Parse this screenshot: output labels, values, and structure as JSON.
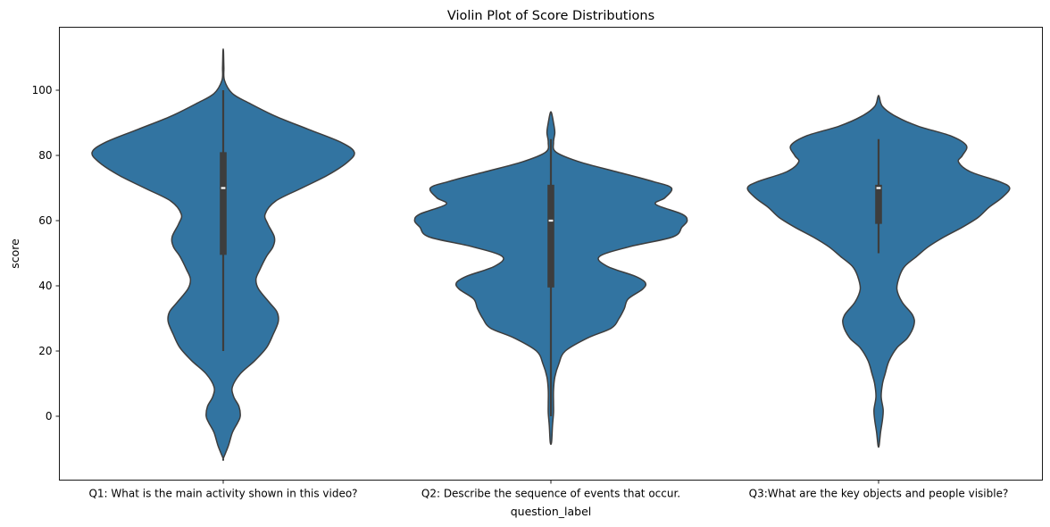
{
  "chart_data": {
    "type": "violin",
    "title": "Violin Plot of Score Distributions",
    "xlabel": "question_label",
    "ylabel": "score",
    "ylim": [
      -13,
      118
    ],
    "yticks": [
      0,
      20,
      40,
      60,
      80,
      100
    ],
    "grid": false,
    "legend": "none",
    "color": "#3274a1",
    "edge_color": "#3d3d3d",
    "inner_color": "#3d3d3d",
    "categories": [
      "Q1: What is the main activity shown in this video?",
      "Q2: Describe the sequence of events that occur.",
      "Q3:What are the key objects and people visible?"
    ],
    "series": [
      {
        "min": 20,
        "q1": 49.5,
        "median": 70,
        "q3": 81,
        "max": 100,
        "density": [
          [
            -13,
            0
          ],
          [
            -9,
            0.04
          ],
          [
            -5,
            0.07
          ],
          [
            -2,
            0.11
          ],
          [
            0,
            0.13
          ],
          [
            3,
            0.12
          ],
          [
            6,
            0.08
          ],
          [
            9,
            0.07
          ],
          [
            13,
            0.13
          ],
          [
            17,
            0.24
          ],
          [
            21,
            0.33
          ],
          [
            25,
            0.38
          ],
          [
            29,
            0.42
          ],
          [
            32,
            0.41
          ],
          [
            35,
            0.35
          ],
          [
            39,
            0.27
          ],
          [
            42,
            0.25
          ],
          [
            45,
            0.28
          ],
          [
            49,
            0.33
          ],
          [
            52,
            0.38
          ],
          [
            55,
            0.39
          ],
          [
            59,
            0.34
          ],
          [
            62,
            0.32
          ],
          [
            66,
            0.4
          ],
          [
            70,
            0.6
          ],
          [
            74,
            0.8
          ],
          [
            78,
            0.95
          ],
          [
            81,
            1.0
          ],
          [
            84,
            0.9
          ],
          [
            88,
            0.65
          ],
          [
            92,
            0.4
          ],
          [
            96,
            0.2
          ],
          [
            99,
            0.07
          ],
          [
            103,
            0.01
          ],
          [
            107,
            0.005
          ],
          [
            112,
            0.002
          ]
        ]
      },
      {
        "min": 0,
        "q1": 39.5,
        "median": 60,
        "q3": 71,
        "max": 85,
        "density": [
          [
            -8,
            0.005
          ],
          [
            -3,
            0.012
          ],
          [
            1,
            0.02
          ],
          [
            4,
            0.02
          ],
          [
            8,
            0.02
          ],
          [
            12,
            0.03
          ],
          [
            16,
            0.06
          ],
          [
            20,
            0.11
          ],
          [
            24,
            0.28
          ],
          [
            27,
            0.46
          ],
          [
            30,
            0.52
          ],
          [
            33,
            0.56
          ],
          [
            36,
            0.59
          ],
          [
            39,
            0.7
          ],
          [
            41,
            0.72
          ],
          [
            43,
            0.64
          ],
          [
            46,
            0.43
          ],
          [
            49,
            0.37
          ],
          [
            52,
            0.6
          ],
          [
            55,
            0.93
          ],
          [
            58,
            1.0
          ],
          [
            60,
            1.04
          ],
          [
            62,
            1.0
          ],
          [
            65,
            0.8
          ],
          [
            67,
            0.87
          ],
          [
            70,
            0.92
          ],
          [
            72,
            0.78
          ],
          [
            75,
            0.5
          ],
          [
            78,
            0.22
          ],
          [
            81,
            0.04
          ],
          [
            84,
            0.02
          ],
          [
            87,
            0.03
          ],
          [
            90,
            0.02
          ],
          [
            93,
            0.005
          ]
        ]
      },
      {
        "min": 50,
        "q1": 59,
        "median": 70,
        "q3": 71,
        "max": 85,
        "density": [
          [
            -9,
            0.004
          ],
          [
            -5,
            0.015
          ],
          [
            -1,
            0.03
          ],
          [
            2,
            0.035
          ],
          [
            6,
            0.02
          ],
          [
            10,
            0.03
          ],
          [
            13,
            0.05
          ],
          [
            17,
            0.08
          ],
          [
            21,
            0.14
          ],
          [
            24,
            0.22
          ],
          [
            28,
            0.27
          ],
          [
            31,
            0.26
          ],
          [
            35,
            0.18
          ],
          [
            39,
            0.14
          ],
          [
            43,
            0.16
          ],
          [
            46,
            0.2
          ],
          [
            49,
            0.29
          ],
          [
            52,
            0.38
          ],
          [
            55,
            0.5
          ],
          [
            58,
            0.64
          ],
          [
            61,
            0.76
          ],
          [
            64,
            0.84
          ],
          [
            67,
            0.94
          ],
          [
            70,
            1.0
          ],
          [
            72,
            0.92
          ],
          [
            75,
            0.7
          ],
          [
            78,
            0.61
          ],
          [
            80,
            0.64
          ],
          [
            83,
            0.67
          ],
          [
            86,
            0.55
          ],
          [
            89,
            0.3
          ],
          [
            92,
            0.13
          ],
          [
            95,
            0.03
          ],
          [
            98,
            0.005
          ]
        ]
      }
    ]
  }
}
